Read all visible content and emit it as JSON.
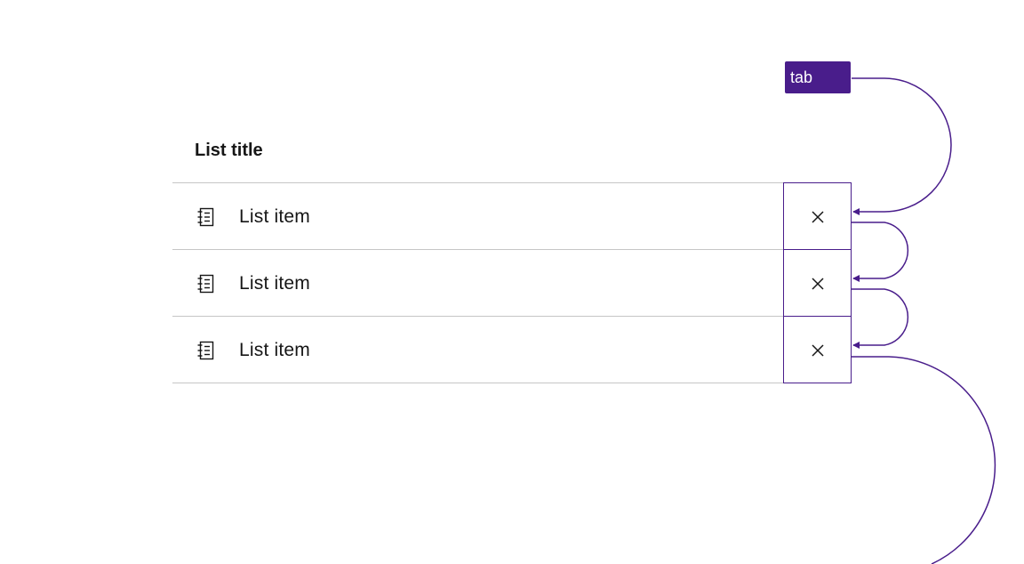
{
  "tab_badge": {
    "label": "tab"
  },
  "list": {
    "title": "List title",
    "items": [
      {
        "label": "List item",
        "icon": "notebook-icon",
        "action_icon": "close-icon"
      },
      {
        "label": "List item",
        "icon": "notebook-icon",
        "action_icon": "close-icon"
      },
      {
        "label": "List item",
        "icon": "notebook-icon",
        "action_icon": "close-icon"
      }
    ]
  },
  "colors": {
    "accent": "#491d8b",
    "divider": "#c6c6c6",
    "text": "#161616"
  }
}
